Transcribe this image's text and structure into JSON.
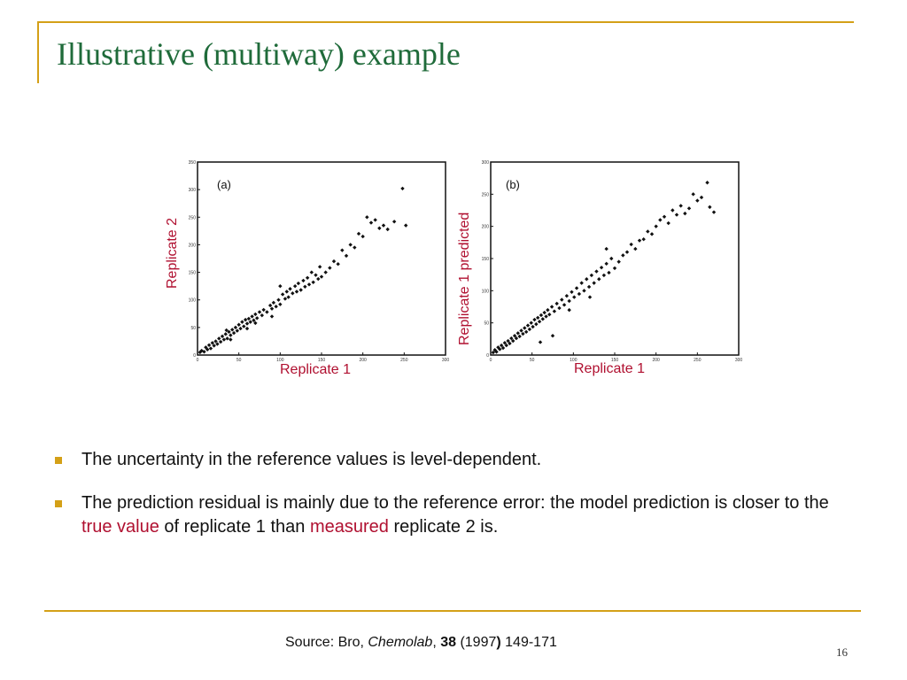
{
  "slide": {
    "title": "Illustrative (multiway) example",
    "page_number": "16"
  },
  "figure": {
    "plot_a": {
      "panel_label": "(a)",
      "xlabel": "Replicate 1",
      "ylabel": "Replicate 2"
    },
    "plot_b": {
      "panel_label": "(b)",
      "xlabel": "Replicate 1",
      "ylabel": "Replicate 1 predicted"
    }
  },
  "bullets": [
    {
      "text": "The uncertainty in the reference values is level-dependent."
    },
    {
      "part1": "The prediction residual is mainly due to the reference error: the model prediction is closer to the ",
      "highlight1": "true value",
      "part2": " of replicate 1 than ",
      "highlight2": "measured",
      "part3": " replicate 2 is."
    }
  ],
  "source": {
    "prefix": "Source: Bro, ",
    "journal": "Chemolab",
    "sep": ", ",
    "volume": "38",
    "year_open": " (1997",
    "year_close": ")",
    "pages": " 149-171"
  },
  "chart_data": [
    {
      "type": "scatter",
      "title": "(a)",
      "xlabel": "Replicate 1",
      "ylabel": "Replicate 2",
      "xlim": [
        0,
        300
      ],
      "ylim": [
        0,
        350
      ],
      "x_ticks": [
        "0",
        "50",
        "100",
        "150",
        "200",
        "250",
        "300"
      ],
      "y_ticks": [
        "0",
        "50",
        "100",
        "150",
        "200",
        "250",
        "300",
        "350"
      ],
      "points": [
        [
          3,
          5
        ],
        [
          5,
          8
        ],
        [
          8,
          6
        ],
        [
          10,
          14
        ],
        [
          12,
          10
        ],
        [
          14,
          18
        ],
        [
          16,
          12
        ],
        [
          18,
          22
        ],
        [
          20,
          17
        ],
        [
          22,
          25
        ],
        [
          24,
          20
        ],
        [
          26,
          30
        ],
        [
          28,
          24
        ],
        [
          30,
          34
        ],
        [
          32,
          28
        ],
        [
          34,
          38
        ],
        [
          36,
          30
        ],
        [
          38,
          42
        ],
        [
          40,
          36
        ],
        [
          42,
          46
        ],
        [
          44,
          40
        ],
        [
          46,
          50
        ],
        [
          48,
          44
        ],
        [
          50,
          55
        ],
        [
          52,
          48
        ],
        [
          54,
          60
        ],
        [
          56,
          52
        ],
        [
          58,
          64
        ],
        [
          60,
          57
        ],
        [
          62,
          66
        ],
        [
          64,
          60
        ],
        [
          66,
          70
        ],
        [
          68,
          63
        ],
        [
          70,
          74
        ],
        [
          72,
          67
        ],
        [
          75,
          78
        ],
        [
          78,
          72
        ],
        [
          80,
          82
        ],
        [
          84,
          78
        ],
        [
          88,
          90
        ],
        [
          90,
          84
        ],
        [
          92,
          95
        ],
        [
          95,
          88
        ],
        [
          98,
          100
        ],
        [
          100,
          92
        ],
        [
          103,
          110
        ],
        [
          106,
          102
        ],
        [
          108,
          115
        ],
        [
          110,
          105
        ],
        [
          112,
          120
        ],
        [
          115,
          112
        ],
        [
          118,
          125
        ],
        [
          120,
          115
        ],
        [
          122,
          130
        ],
        [
          125,
          118
        ],
        [
          128,
          135
        ],
        [
          130,
          124
        ],
        [
          133,
          140
        ],
        [
          135,
          128
        ],
        [
          138,
          150
        ],
        [
          140,
          132
        ],
        [
          143,
          145
        ],
        [
          146,
          138
        ],
        [
          148,
          160
        ],
        [
          150,
          142
        ],
        [
          155,
          150
        ],
        [
          160,
          158
        ],
        [
          165,
          170
        ],
        [
          170,
          165
        ],
        [
          175,
          190
        ],
        [
          180,
          180
        ],
        [
          185,
          200
        ],
        [
          190,
          195
        ],
        [
          195,
          220
        ],
        [
          200,
          215
        ],
        [
          205,
          250
        ],
        [
          210,
          240
        ],
        [
          215,
          245
        ],
        [
          220,
          230
        ],
        [
          225,
          235
        ],
        [
          230,
          228
        ],
        [
          238,
          242
        ],
        [
          248,
          302
        ],
        [
          252,
          235
        ],
        [
          40,
          28
        ],
        [
          35,
          45
        ],
        [
          60,
          48
        ],
        [
          70,
          58
        ],
        [
          90,
          70
        ],
        [
          100,
          125
        ]
      ]
    },
    {
      "type": "scatter",
      "title": "(b)",
      "xlabel": "Replicate 1",
      "ylabel": "Replicate 1 predicted",
      "xlim": [
        0,
        300
      ],
      "ylim": [
        0,
        300
      ],
      "x_ticks": [
        "0",
        "50",
        "100",
        "150",
        "200",
        "250",
        "300"
      ],
      "y_ticks": [
        "0",
        "50",
        "100",
        "150",
        "200",
        "250",
        "300"
      ],
      "points": [
        [
          3,
          4
        ],
        [
          5,
          8
        ],
        [
          7,
          5
        ],
        [
          9,
          12
        ],
        [
          11,
          9
        ],
        [
          13,
          15
        ],
        [
          15,
          11
        ],
        [
          17,
          19
        ],
        [
          19,
          15
        ],
        [
          21,
          22
        ],
        [
          23,
          18
        ],
        [
          25,
          26
        ],
        [
          27,
          22
        ],
        [
          29,
          30
        ],
        [
          31,
          26
        ],
        [
          33,
          34
        ],
        [
          35,
          29
        ],
        [
          37,
          38
        ],
        [
          39,
          33
        ],
        [
          41,
          42
        ],
        [
          43,
          36
        ],
        [
          45,
          46
        ],
        [
          47,
          40
        ],
        [
          49,
          50
        ],
        [
          51,
          44
        ],
        [
          53,
          55
        ],
        [
          55,
          48
        ],
        [
          57,
          58
        ],
        [
          59,
          52
        ],
        [
          61,
          62
        ],
        [
          63,
          56
        ],
        [
          65,
          66
        ],
        [
          67,
          60
        ],
        [
          69,
          70
        ],
        [
          71,
          63
        ],
        [
          74,
          75
        ],
        [
          77,
          68
        ],
        [
          80,
          80
        ],
        [
          83,
          73
        ],
        [
          86,
          86
        ],
        [
          89,
          78
        ],
        [
          92,
          92
        ],
        [
          95,
          84
        ],
        [
          98,
          98
        ],
        [
          101,
          90
        ],
        [
          104,
          104
        ],
        [
          107,
          95
        ],
        [
          110,
          112
        ],
        [
          113,
          100
        ],
        [
          116,
          118
        ],
        [
          119,
          106
        ],
        [
          122,
          124
        ],
        [
          125,
          112
        ],
        [
          128,
          130
        ],
        [
          131,
          118
        ],
        [
          134,
          136
        ],
        [
          137,
          124
        ],
        [
          140,
          142
        ],
        [
          143,
          128
        ],
        [
          146,
          150
        ],
        [
          150,
          135
        ],
        [
          155,
          145
        ],
        [
          160,
          155
        ],
        [
          165,
          160
        ],
        [
          170,
          172
        ],
        [
          175,
          165
        ],
        [
          180,
          178
        ],
        [
          185,
          180
        ],
        [
          190,
          192
        ],
        [
          195,
          188
        ],
        [
          200,
          200
        ],
        [
          205,
          210
        ],
        [
          210,
          215
        ],
        [
          215,
          205
        ],
        [
          220,
          225
        ],
        [
          225,
          218
        ],
        [
          230,
          232
        ],
        [
          235,
          220
        ],
        [
          240,
          228
        ],
        [
          245,
          250
        ],
        [
          250,
          240
        ],
        [
          255,
          245
        ],
        [
          262,
          268
        ],
        [
          265,
          230
        ],
        [
          270,
          222
        ],
        [
          60,
          20
        ],
        [
          75,
          30
        ],
        [
          95,
          70
        ],
        [
          120,
          90
        ],
        [
          140,
          165
        ]
      ]
    }
  ]
}
